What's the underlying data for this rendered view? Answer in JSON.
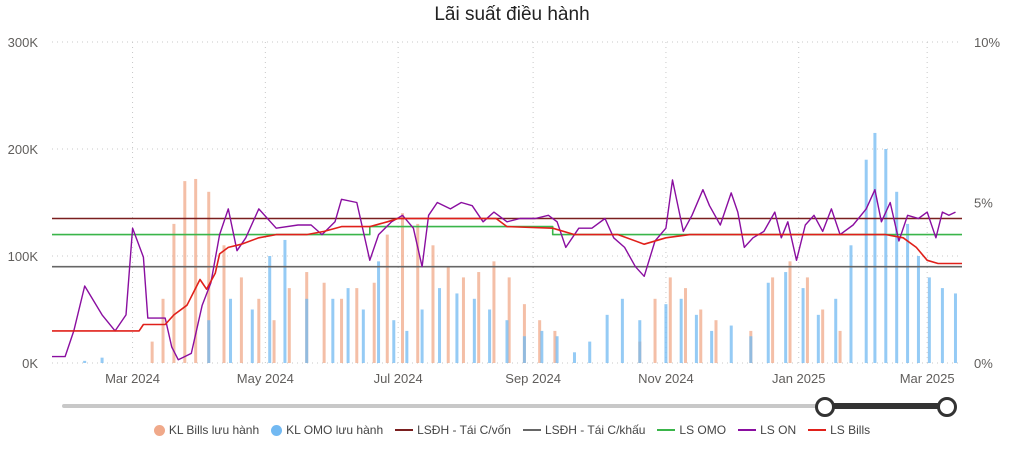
{
  "title": "Lãi suất điều hành",
  "left_axis_ticks": [
    "300K",
    "200K",
    "100K",
    "0K"
  ],
  "right_axis_ticks": [
    "10%",
    "5%",
    "0%"
  ],
  "x_axis_ticks": [
    "Mar 2024",
    "May 2024",
    "Jul 2024",
    "Sep 2024",
    "Nov 2024",
    "Jan 2025",
    "Mar 2025"
  ],
  "legend": [
    {
      "label": "KL Bills lưu hành",
      "color": "#f0a98a",
      "kind": "dot"
    },
    {
      "label": "KL OMO lưu hành",
      "color": "#72b9f2",
      "kind": "dot"
    },
    {
      "label": "LSĐH - Tái C/vốn",
      "color": "#7a1f1f",
      "kind": "line"
    },
    {
      "label": "LSĐH - Tái C/khấu",
      "color": "#666666",
      "kind": "line"
    },
    {
      "label": "LS OMO",
      "color": "#3ab54a",
      "kind": "line"
    },
    {
      "label": "LS ON",
      "color": "#8a0ea0",
      "kind": "line"
    },
    {
      "label": "LS Bills",
      "color": "#e0201a",
      "kind": "line"
    }
  ],
  "chart_data": {
    "type": "bar",
    "title": "Lãi suất điều hành",
    "x_range": [
      "2024-01-24",
      "2025-03-17"
    ],
    "y_left_range": [
      0,
      300000
    ],
    "y_right_range": [
      0,
      10
    ],
    "y_right_unit": "%",
    "grid": true,
    "legend_position": "bottom",
    "series": [
      {
        "name": "KL Bills lưu hành",
        "type": "bar",
        "axis": "left",
        "points": [
          [
            "2024-03-10",
            20000
          ],
          [
            "2024-03-15",
            60000
          ],
          [
            "2024-03-20",
            130000
          ],
          [
            "2024-03-25",
            170000
          ],
          [
            "2024-03-30",
            172000
          ],
          [
            "2024-04-05",
            160000
          ],
          [
            "2024-04-12",
            110000
          ],
          [
            "2024-04-20",
            80000
          ],
          [
            "2024-04-28",
            60000
          ],
          [
            "2024-05-05",
            40000
          ],
          [
            "2024-05-12",
            70000
          ],
          [
            "2024-05-20",
            85000
          ],
          [
            "2024-05-28",
            75000
          ],
          [
            "2024-06-05",
            60000
          ],
          [
            "2024-06-12",
            70000
          ],
          [
            "2024-06-20",
            75000
          ],
          [
            "2024-06-26",
            120000
          ],
          [
            "2024-07-03",
            140000
          ],
          [
            "2024-07-10",
            130000
          ],
          [
            "2024-07-17",
            110000
          ],
          [
            "2024-07-24",
            90000
          ],
          [
            "2024-07-31",
            80000
          ],
          [
            "2024-08-07",
            85000
          ],
          [
            "2024-08-14",
            95000
          ],
          [
            "2024-08-21",
            80000
          ],
          [
            "2024-08-28",
            55000
          ],
          [
            "2024-09-04",
            40000
          ],
          [
            "2024-09-11",
            30000
          ],
          [
            "2024-10-20",
            20000
          ],
          [
            "2024-10-27",
            60000
          ],
          [
            "2024-11-03",
            80000
          ],
          [
            "2024-11-10",
            70000
          ],
          [
            "2024-11-17",
            50000
          ],
          [
            "2024-11-24",
            40000
          ],
          [
            "2024-12-10",
            30000
          ],
          [
            "2024-12-20",
            80000
          ],
          [
            "2024-12-28",
            95000
          ],
          [
            "2025-01-05",
            80000
          ],
          [
            "2025-01-12",
            50000
          ],
          [
            "2025-01-20",
            30000
          ]
        ]
      },
      {
        "name": "KL OMO lưu hành",
        "type": "bar",
        "axis": "left",
        "points": [
          [
            "2024-02-08",
            2000
          ],
          [
            "2024-02-16",
            5000
          ],
          [
            "2024-04-05",
            40000
          ],
          [
            "2024-04-15",
            60000
          ],
          [
            "2024-04-25",
            50000
          ],
          [
            "2024-05-03",
            100000
          ],
          [
            "2024-05-10",
            115000
          ],
          [
            "2024-05-20",
            60000
          ],
          [
            "2024-06-01",
            60000
          ],
          [
            "2024-06-08",
            70000
          ],
          [
            "2024-06-15",
            50000
          ],
          [
            "2024-06-22",
            95000
          ],
          [
            "2024-06-29",
            40000
          ],
          [
            "2024-07-05",
            30000
          ],
          [
            "2024-07-12",
            50000
          ],
          [
            "2024-07-20",
            70000
          ],
          [
            "2024-07-28",
            65000
          ],
          [
            "2024-08-05",
            60000
          ],
          [
            "2024-08-12",
            50000
          ],
          [
            "2024-08-20",
            40000
          ],
          [
            "2024-08-28",
            25000
          ],
          [
            "2024-09-05",
            30000
          ],
          [
            "2024-09-12",
            25000
          ],
          [
            "2024-09-20",
            10000
          ],
          [
            "2024-09-27",
            20000
          ],
          [
            "2024-10-05",
            45000
          ],
          [
            "2024-10-12",
            60000
          ],
          [
            "2024-10-20",
            40000
          ],
          [
            "2024-11-01",
            55000
          ],
          [
            "2024-11-08",
            60000
          ],
          [
            "2024-11-15",
            45000
          ],
          [
            "2024-11-22",
            30000
          ],
          [
            "2024-12-01",
            35000
          ],
          [
            "2024-12-10",
            25000
          ],
          [
            "2024-12-18",
            75000
          ],
          [
            "2024-12-26",
            85000
          ],
          [
            "2025-01-03",
            70000
          ],
          [
            "2025-01-10",
            45000
          ],
          [
            "2025-01-18",
            60000
          ],
          [
            "2025-01-25",
            110000
          ],
          [
            "2025-02-01",
            190000
          ],
          [
            "2025-02-05",
            215000
          ],
          [
            "2025-02-10",
            200000
          ],
          [
            "2025-02-15",
            160000
          ],
          [
            "2025-02-20",
            130000
          ],
          [
            "2025-02-25",
            100000
          ],
          [
            "2025-03-02",
            80000
          ],
          [
            "2025-03-08",
            70000
          ],
          [
            "2025-03-14",
            65000
          ]
        ]
      },
      {
        "name": "LSĐH - Tái C/vốn",
        "type": "line",
        "axis": "right",
        "points": [
          [
            "2024-01-24",
            4.5
          ],
          [
            "2025-03-17",
            4.5
          ]
        ]
      },
      {
        "name": "LSĐH - Tái C/khấu",
        "type": "line",
        "axis": "right",
        "points": [
          [
            "2024-01-24",
            3.0
          ],
          [
            "2025-03-17",
            3.0
          ]
        ]
      },
      {
        "name": "LS OMO",
        "type": "line",
        "axis": "right",
        "points": [
          [
            "2024-01-24",
            4.0
          ],
          [
            "2024-06-18",
            4.0
          ],
          [
            "2024-06-18",
            4.25
          ],
          [
            "2024-09-10",
            4.25
          ],
          [
            "2024-09-10",
            4.0
          ],
          [
            "2025-03-17",
            4.0
          ]
        ]
      },
      {
        "name": "LS ON",
        "type": "line",
        "axis": "right",
        "points": [
          [
            "2024-01-24",
            0.2
          ],
          [
            "2024-01-30",
            0.2
          ],
          [
            "2024-02-03",
            1.0
          ],
          [
            "2024-02-08",
            2.4
          ],
          [
            "2024-02-16",
            1.5
          ],
          [
            "2024-02-22",
            1.0
          ],
          [
            "2024-02-27",
            1.5
          ],
          [
            "2024-03-01",
            4.2
          ],
          [
            "2024-03-06",
            3.3
          ],
          [
            "2024-03-08",
            1.4
          ],
          [
            "2024-03-16",
            1.4
          ],
          [
            "2024-03-19",
            0.5
          ],
          [
            "2024-03-22",
            0.1
          ],
          [
            "2024-03-28",
            0.3
          ],
          [
            "2024-04-02",
            1.8
          ],
          [
            "2024-04-06",
            2.5
          ],
          [
            "2024-04-10",
            4.0
          ],
          [
            "2024-04-14",
            4.8
          ],
          [
            "2024-04-18",
            3.5
          ],
          [
            "2024-04-22",
            3.9
          ],
          [
            "2024-04-28",
            4.8
          ],
          [
            "2024-05-06",
            4.2
          ],
          [
            "2024-05-16",
            4.3
          ],
          [
            "2024-05-22",
            4.3
          ],
          [
            "2024-05-27",
            4.0
          ],
          [
            "2024-06-02",
            4.4
          ],
          [
            "2024-06-05",
            5.1
          ],
          [
            "2024-06-12",
            5.0
          ],
          [
            "2024-06-18",
            3.2
          ],
          [
            "2024-06-22",
            4.0
          ],
          [
            "2024-06-28",
            4.4
          ],
          [
            "2024-07-03",
            4.6
          ],
          [
            "2024-07-08",
            4.2
          ],
          [
            "2024-07-12",
            3.0
          ],
          [
            "2024-07-15",
            4.6
          ],
          [
            "2024-07-19",
            5.0
          ],
          [
            "2024-07-25",
            4.8
          ],
          [
            "2024-07-30",
            5.0
          ],
          [
            "2024-08-04",
            4.9
          ],
          [
            "2024-08-09",
            4.4
          ],
          [
            "2024-08-14",
            4.7
          ],
          [
            "2024-08-20",
            4.4
          ],
          [
            "2024-08-26",
            4.5
          ],
          [
            "2024-09-02",
            4.5
          ],
          [
            "2024-09-08",
            4.6
          ],
          [
            "2024-09-12",
            4.4
          ],
          [
            "2024-09-16",
            3.6
          ],
          [
            "2024-09-22",
            4.2
          ],
          [
            "2024-09-28",
            4.2
          ],
          [
            "2024-10-04",
            4.5
          ],
          [
            "2024-10-08",
            3.9
          ],
          [
            "2024-10-13",
            3.6
          ],
          [
            "2024-10-18",
            3.0
          ],
          [
            "2024-10-22",
            2.7
          ],
          [
            "2024-10-27",
            3.8
          ],
          [
            "2024-11-01",
            4.2
          ],
          [
            "2024-11-04",
            5.7
          ],
          [
            "2024-11-09",
            4.1
          ],
          [
            "2024-11-13",
            4.6
          ],
          [
            "2024-11-18",
            5.4
          ],
          [
            "2024-11-21",
            4.9
          ],
          [
            "2024-11-26",
            4.3
          ],
          [
            "2024-12-01",
            5.3
          ],
          [
            "2024-12-04",
            4.7
          ],
          [
            "2024-12-07",
            3.6
          ],
          [
            "2024-12-11",
            3.9
          ],
          [
            "2024-12-16",
            4.1
          ],
          [
            "2024-12-21",
            4.7
          ],
          [
            "2024-12-24",
            3.9
          ],
          [
            "2024-12-27",
            4.4
          ],
          [
            "2024-12-31",
            3.2
          ],
          [
            "2025-01-04",
            4.3
          ],
          [
            "2025-01-08",
            4.6
          ],
          [
            "2025-01-12",
            4.1
          ],
          [
            "2025-01-16",
            4.8
          ],
          [
            "2025-01-20",
            4.0
          ],
          [
            "2025-01-26",
            4.3
          ],
          [
            "2025-02-01",
            4.8
          ],
          [
            "2025-02-05",
            5.4
          ],
          [
            "2025-02-08",
            4.4
          ],
          [
            "2025-02-12",
            5.0
          ],
          [
            "2025-02-16",
            3.8
          ],
          [
            "2025-02-20",
            4.6
          ],
          [
            "2025-02-25",
            4.5
          ],
          [
            "2025-03-01",
            4.7
          ],
          [
            "2025-03-05",
            3.9
          ],
          [
            "2025-03-08",
            4.7
          ],
          [
            "2025-03-11",
            4.6
          ],
          [
            "2025-03-14",
            4.7
          ]
        ]
      },
      {
        "name": "LS Bills",
        "type": "line",
        "axis": "right",
        "points": [
          [
            "2024-01-24",
            1.0
          ],
          [
            "2024-03-04",
            1.0
          ],
          [
            "2024-03-06",
            1.2
          ],
          [
            "2024-03-16",
            1.2
          ],
          [
            "2024-03-20",
            1.5
          ],
          [
            "2024-03-26",
            1.8
          ],
          [
            "2024-04-01",
            2.6
          ],
          [
            "2024-04-04",
            2.3
          ],
          [
            "2024-04-08",
            2.8
          ],
          [
            "2024-04-10",
            3.4
          ],
          [
            "2024-04-14",
            3.6
          ],
          [
            "2024-04-20",
            3.7
          ],
          [
            "2024-04-28",
            3.9
          ],
          [
            "2024-05-06",
            4.0
          ],
          [
            "2024-05-20",
            4.0
          ],
          [
            "2024-05-28",
            4.1
          ],
          [
            "2024-06-05",
            4.25
          ],
          [
            "2024-06-18",
            4.25
          ],
          [
            "2024-06-26",
            4.4
          ],
          [
            "2024-07-01",
            4.5
          ],
          [
            "2024-08-15",
            4.5
          ],
          [
            "2024-08-20",
            4.25
          ],
          [
            "2024-09-10",
            4.2
          ],
          [
            "2024-09-20",
            4.0
          ],
          [
            "2024-10-10",
            4.0
          ],
          [
            "2024-10-22",
            3.7
          ],
          [
            "2024-11-01",
            3.9
          ],
          [
            "2024-11-12",
            4.0
          ],
          [
            "2024-12-01",
            4.0
          ],
          [
            "2025-01-10",
            4.0
          ],
          [
            "2025-02-10",
            4.0
          ],
          [
            "2025-02-18",
            3.9
          ],
          [
            "2025-02-24",
            3.6
          ],
          [
            "2025-03-01",
            3.2
          ],
          [
            "2025-03-06",
            3.1
          ],
          [
            "2025-03-17",
            3.1
          ]
        ]
      }
    ]
  }
}
